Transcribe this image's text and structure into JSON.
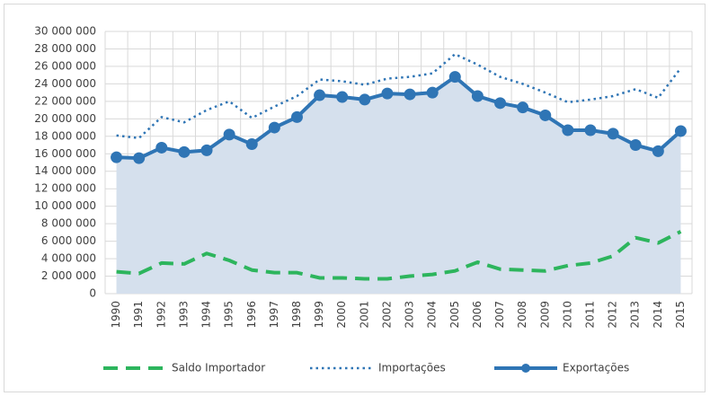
{
  "chart_data": {
    "type": "line",
    "categories": [
      "1990",
      "1991",
      "1992",
      "1993",
      "1994",
      "1995",
      "1996",
      "1997",
      "1998",
      "1999",
      "2000",
      "2001",
      "2002",
      "2003",
      "2004",
      "2005",
      "2006",
      "2007",
      "2008",
      "2009",
      "2010",
      "2011",
      "2012",
      "2013",
      "2014",
      "2015"
    ],
    "series": [
      {
        "name": "Saldo Importador",
        "color": "#2db55d",
        "dash": "dashed",
        "marker": false,
        "area": false,
        "values": [
          2500000,
          2300000,
          3500000,
          3400000,
          4600000,
          3800000,
          2700000,
          2400000,
          2400000,
          1800000,
          1800000,
          1700000,
          1700000,
          2000000,
          2200000,
          2600000,
          3600000,
          2800000,
          2700000,
          2600000,
          3200000,
          3500000,
          4300000,
          6400000,
          5800000,
          7100000
        ]
      },
      {
        "name": "Importações",
        "color": "#2f75b5",
        "dash": "dotted",
        "marker": false,
        "area": false,
        "values": [
          18100000,
          17800000,
          20200000,
          19600000,
          21000000,
          22000000,
          20100000,
          21400000,
          22600000,
          24500000,
          24300000,
          23900000,
          24600000,
          24800000,
          25200000,
          27400000,
          26200000,
          24800000,
          24000000,
          23000000,
          21900000,
          22200000,
          22600000,
          23400000,
          22400000,
          25800000
        ]
      },
      {
        "name": "Exportações",
        "color": "#2f75b5",
        "dash": "solid",
        "marker": true,
        "area": true,
        "area_color": "#d5e0ed",
        "values": [
          15600000,
          15500000,
          16700000,
          16200000,
          16400000,
          18200000,
          17100000,
          19000000,
          20200000,
          22700000,
          22500000,
          22200000,
          22900000,
          22800000,
          23000000,
          24800000,
          22600000,
          21800000,
          21300000,
          20400000,
          18700000,
          18700000,
          18300000,
          17000000,
          16300000,
          18600000
        ]
      }
    ],
    "ylim": [
      0,
      30000000
    ],
    "yticks": [
      0,
      {
        "value": 2000000,
        "label": "2 000 000"
      },
      {
        "value": 4000000,
        "label": "4 000 000"
      },
      {
        "value": 6000000,
        "label": "6 000 000"
      },
      {
        "value": 8000000,
        "label": "8 000 000"
      },
      {
        "value": 10000000,
        "label": "10 000 000"
      },
      {
        "value": 12000000,
        "label": "12 000 000"
      },
      {
        "value": 14000000,
        "label": "14 000 000"
      },
      {
        "value": 16000000,
        "label": "16 000 000"
      },
      {
        "value": 18000000,
        "label": "18 000 000"
      },
      {
        "value": 20000000,
        "label": "20 000 000"
      },
      {
        "value": 22000000,
        "label": "22 000 000"
      },
      {
        "value": 24000000,
        "label": "24 000 000"
      },
      {
        "value": 26000000,
        "label": "26 000 000"
      },
      {
        "value": 28000000,
        "label": "28 000 000"
      },
      {
        "value": 30000000,
        "label": "30 000 000"
      }
    ],
    "grid": true,
    "legend": "bottom"
  }
}
